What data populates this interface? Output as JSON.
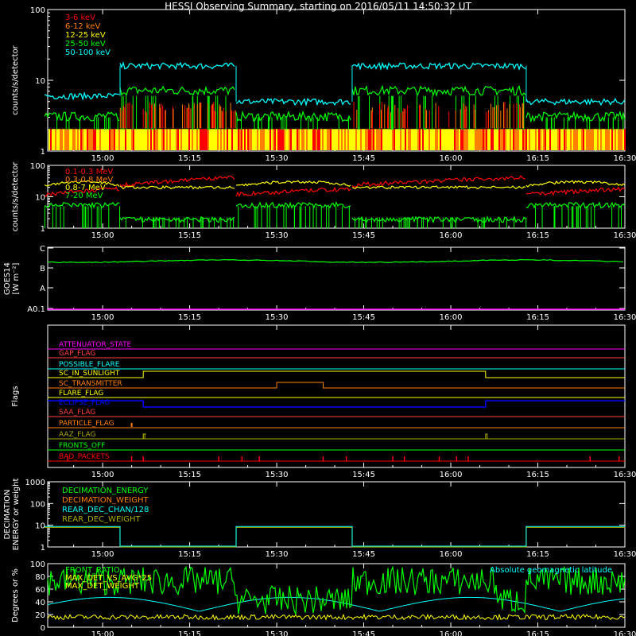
{
  "title": "HESSI Observing Summary, starting on 2016/05/11 14:50:32 UT",
  "time_ticks": [
    "15:00",
    "15:15",
    "15:30",
    "15:45",
    "16:00",
    "16:15",
    "16:30"
  ],
  "colors": {
    "bg": "#000000",
    "axis": "#ffffff",
    "red": "#ff0000",
    "orange": "#ff7f00",
    "yellow": "#ffff00",
    "green": "#00ff00",
    "cyan": "#00ffff",
    "blue": "#0000ff",
    "magenta": "#ff00ff",
    "olive": "#aaaa00",
    "salmon": "#ff4040"
  },
  "chart_data": [
    {
      "id": "panel1",
      "type": "line",
      "ylabel": "counts/s/detector",
      "ylog": true,
      "ylim": [
        1,
        100
      ],
      "yticks": [
        "1",
        "10",
        "100"
      ],
      "series": [
        {
          "name": "3-6 keV",
          "color": "#ff0000"
        },
        {
          "name": "6-12 keV",
          "color": "#ff7f00"
        },
        {
          "name": "12-25 keV",
          "color": "#ffff00"
        },
        {
          "name": "25-50 keV",
          "color": "#00ff00"
        },
        {
          "name": "50-100 keV",
          "color": "#00ffff"
        }
      ],
      "segments_50_100": [
        {
          "t0": "14:50",
          "t1": "15:03",
          "value": 6
        },
        {
          "t0": "15:03",
          "t1": "15:23",
          "value": 16
        },
        {
          "t0": "15:23",
          "t1": "15:43",
          "value": 5
        },
        {
          "t0": "15:43",
          "t1": "16:13",
          "value": 16
        },
        {
          "t0": "16:13",
          "t1": "16:30",
          "value": 5
        }
      ]
    },
    {
      "id": "panel2",
      "type": "line",
      "ylabel": "counts/s/detector",
      "ylog": true,
      "ylim": [
        1,
        100
      ],
      "yticks": [
        "1",
        "10",
        "100"
      ],
      "series": [
        {
          "name": "0.1-0.3 MeV",
          "color": "#ff0000"
        },
        {
          "name": "0.3-0.8 MeV",
          "color": "#ff7f00"
        },
        {
          "name": "0.8-7 MeV",
          "color": "#ffff00"
        },
        {
          "name": "7-20 MeV",
          "color": "#00ff00"
        }
      ]
    },
    {
      "id": "panel3",
      "type": "line",
      "ylabel": "GOES14",
      "ylabel2": "[W m⁻²]",
      "yticks": [
        "A0.1",
        "A",
        "B",
        "C"
      ],
      "series": [
        {
          "name": "GOES",
          "color": "#00ff00",
          "level": "B"
        }
      ]
    },
    {
      "id": "panel4",
      "type": "table",
      "ylabel": "Flags",
      "flags": [
        {
          "name": "ATTENUATOR_STATE",
          "color": "#ff00ff"
        },
        {
          "name": "GAP_FLAG",
          "color": "#ff4040"
        },
        {
          "name": "POSSIBLE_FLARE",
          "color": "#00ffff"
        },
        {
          "name": "SC_IN_SUNLIGHT",
          "color": "#ffff00"
        },
        {
          "name": "SC_TRANSMITTER",
          "color": "#ff7f00"
        },
        {
          "name": "FLARE_FLAG",
          "color": "#ffff00"
        },
        {
          "name": "ECLIPSE_FLAG",
          "color": "#0000ff"
        },
        {
          "name": "SAA_FLAG",
          "color": "#ff4040"
        },
        {
          "name": "PARTICLE_FLAG",
          "color": "#ff7f00"
        },
        {
          "name": "AAZ_FLAG",
          "color": "#aaaa00"
        },
        {
          "name": "FRONTS_OFF",
          "color": "#00ff00"
        },
        {
          "name": "BAD_PACKETS",
          "color": "#ff0000"
        }
      ]
    },
    {
      "id": "panel5",
      "type": "line",
      "ylabel": "DECIMATION",
      "ylabel2": "ENERGY or weight",
      "ylog": true,
      "ylim": [
        1,
        1000
      ],
      "yticks": [
        "1",
        "10",
        "100",
        "1000"
      ],
      "series": [
        {
          "name": "DECIMATION_ENERGY",
          "color": "#00ff00"
        },
        {
          "name": "DECIMATION_WEIGHT",
          "color": "#ff7f00"
        },
        {
          "name": "REAR_DEC_CHAN/128",
          "color": "#00ffff"
        },
        {
          "name": "REAR_DEC_WEIGHT",
          "color": "#aaaa00"
        }
      ]
    },
    {
      "id": "panel6",
      "type": "line",
      "ylabel": "Degrees or %",
      "ylim": [
        0,
        100
      ],
      "yticks": [
        "0",
        "20",
        "40",
        "60",
        "80",
        "100"
      ],
      "series": [
        {
          "name": "FRONT_RATIO",
          "color": "#00ff00"
        },
        {
          "name": "MAX_DET_VS_AVG*25",
          "color": "#ffff00"
        },
        {
          "name": "MAX_DET_WEIGHT",
          "color": "#ffff00"
        },
        {
          "name": "Absolute geomagnetic latitude",
          "color": "#00ffff"
        }
      ]
    }
  ]
}
